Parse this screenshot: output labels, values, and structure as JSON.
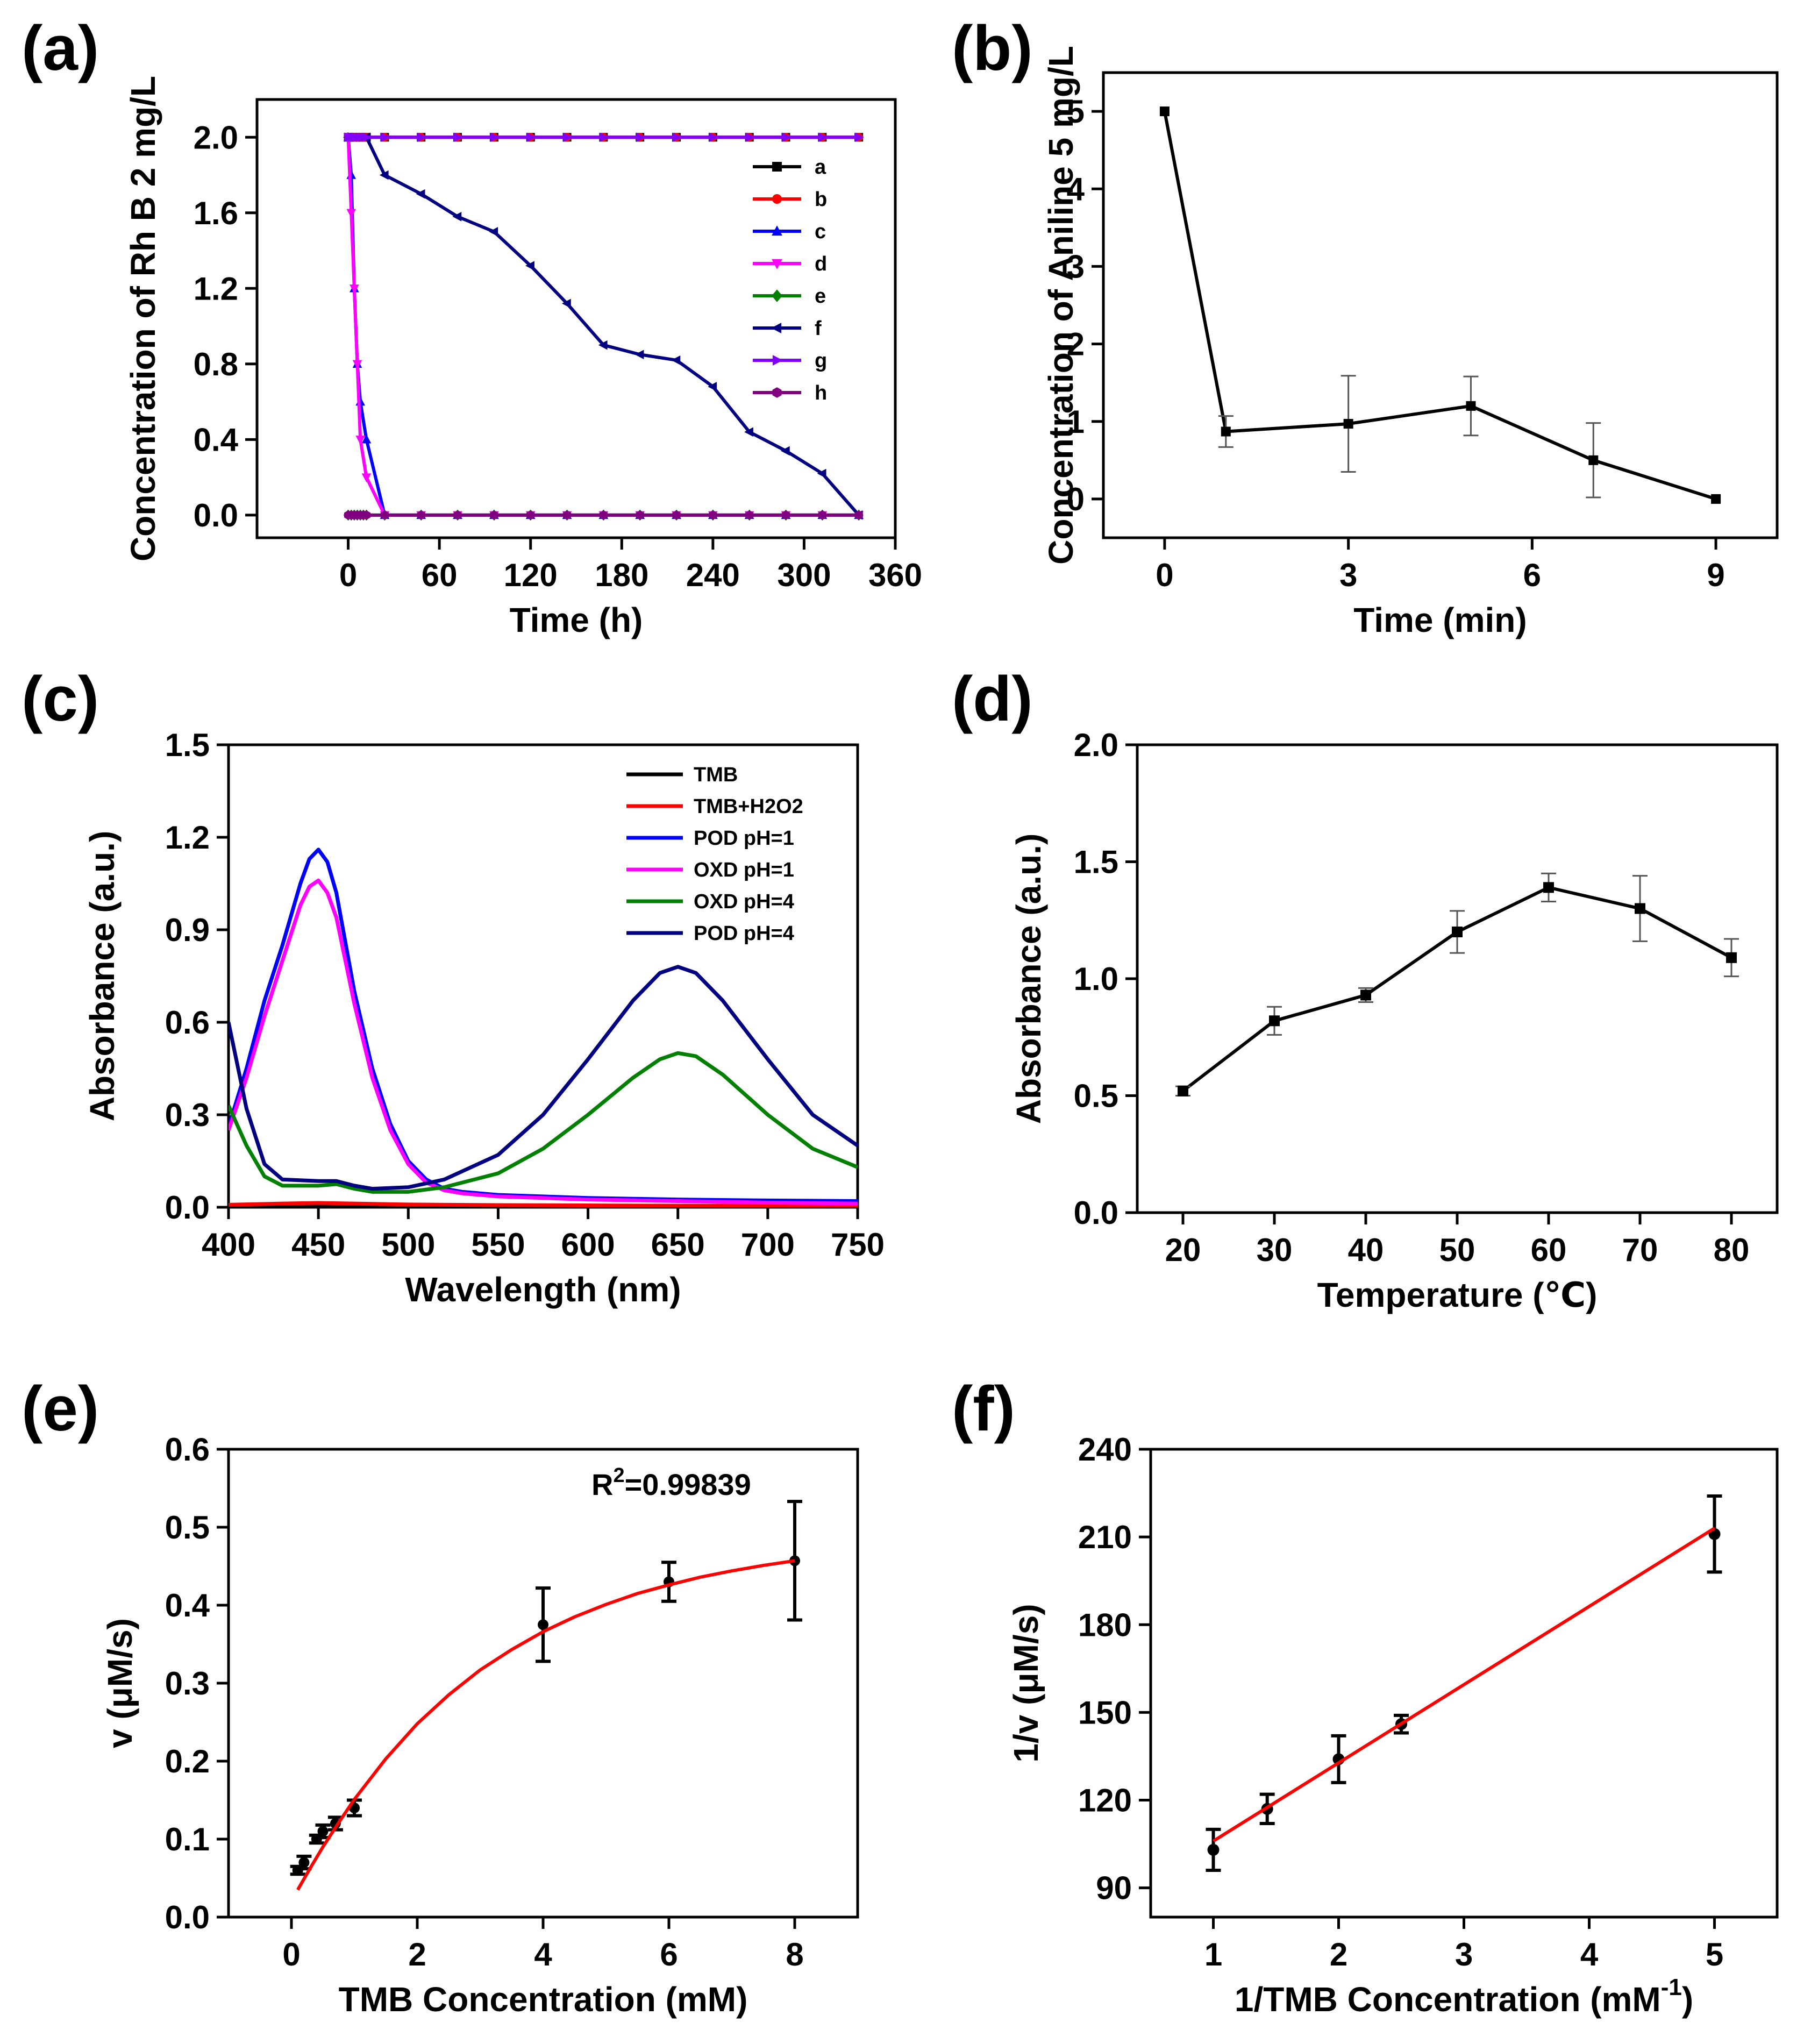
{
  "chart_data": [
    {
      "id": "a",
      "label": "(a)",
      "type": "line",
      "xlabel": "Time (h)",
      "ylabel": "Concentration of Rh B 2 mg/L",
      "xlim": [
        -60,
        360
      ],
      "ylim": [
        -0.12,
        2.2
      ],
      "xticks": [
        0,
        60,
        120,
        180,
        240,
        300,
        360
      ],
      "yticks": [
        0.0,
        0.4,
        0.8,
        1.2,
        1.6,
        2.0
      ],
      "xticklabels": [
        "0",
        "60",
        "120",
        "180",
        "240",
        "300",
        "360"
      ],
      "yticklabels": [
        "0.0",
        "0.4",
        "0.8",
        "1.2",
        "1.6",
        "2.0"
      ],
      "legend_position": "right",
      "series": [
        {
          "name": "a",
          "color": "#000000",
          "marker": "square",
          "x": [
            0,
            2,
            4,
            6,
            8,
            10,
            12,
            24,
            48,
            72,
            96,
            120,
            144,
            168,
            192,
            216,
            240,
            264,
            288,
            312,
            336
          ],
          "y": [
            2,
            2,
            2,
            2,
            2,
            2,
            2,
            2,
            2,
            2,
            2,
            2,
            2,
            2,
            2,
            2,
            2,
            2,
            2,
            2,
            2
          ]
        },
        {
          "name": "b",
          "color": "#ff0000",
          "marker": "circle",
          "x": [
            0,
            2,
            4,
            6,
            8,
            10,
            12,
            24,
            48,
            72,
            96,
            120,
            144,
            168,
            192,
            216,
            240,
            264,
            288,
            312,
            336
          ],
          "y": [
            2,
            2,
            2,
            2,
            2,
            2,
            2,
            2,
            2,
            2,
            2,
            2,
            2,
            2,
            2,
            2,
            2,
            2,
            2,
            2,
            2
          ]
        },
        {
          "name": "c",
          "color": "#0000ff",
          "marker": "triangle-up",
          "x": [
            0,
            2,
            4,
            6,
            8,
            12,
            24,
            48,
            72,
            96,
            120,
            144,
            168,
            192,
            216,
            240,
            264,
            288,
            312,
            336
          ],
          "y": [
            2.0,
            1.8,
            1.2,
            0.8,
            0.6,
            0.4,
            0.0,
            0,
            0,
            0,
            0,
            0,
            0,
            0,
            0,
            0,
            0,
            0,
            0,
            0
          ]
        },
        {
          "name": "d",
          "color": "#ff00ff",
          "marker": "triangle-down",
          "x": [
            0,
            2,
            4,
            6,
            8,
            12,
            24,
            48,
            72,
            96,
            120,
            144,
            168,
            192,
            216,
            240,
            264,
            288,
            312,
            336
          ],
          "y": [
            2.0,
            1.6,
            1.2,
            0.8,
            0.4,
            0.2,
            0.0,
            0,
            0,
            0,
            0,
            0,
            0,
            0,
            0,
            0,
            0,
            0,
            0,
            0
          ]
        },
        {
          "name": "e",
          "color": "#008000",
          "marker": "diamond",
          "x": [
            0,
            2,
            4,
            6,
            8,
            10,
            12,
            24,
            48,
            72,
            96,
            120,
            144,
            168,
            192,
            216,
            240,
            264,
            288,
            312,
            336
          ],
          "y": [
            0,
            0,
            0,
            0,
            0,
            0,
            0,
            0,
            0,
            0,
            0,
            0,
            0,
            0,
            0,
            0,
            0,
            0,
            0,
            0,
            0
          ]
        },
        {
          "name": "f",
          "color": "#000080",
          "marker": "triangle-left",
          "x": [
            0,
            12,
            24,
            48,
            72,
            96,
            120,
            144,
            168,
            192,
            216,
            240,
            264,
            288,
            312,
            336
          ],
          "y": [
            2.0,
            2.0,
            1.8,
            1.7,
            1.58,
            1.5,
            1.32,
            1.12,
            0.9,
            0.85,
            0.82,
            0.68,
            0.44,
            0.34,
            0.22,
            0.0
          ]
        },
        {
          "name": "g",
          "color": "#8000ff",
          "marker": "triangle-right",
          "x": [
            0,
            2,
            4,
            6,
            8,
            10,
            12,
            24,
            48,
            72,
            96,
            120,
            144,
            168,
            192,
            216,
            240,
            264,
            288,
            312,
            336
          ],
          "y": [
            2,
            2,
            2,
            2,
            2,
            2,
            2,
            2,
            2,
            2,
            2,
            2,
            2,
            2,
            2,
            2,
            2,
            2,
            2,
            2,
            2
          ]
        },
        {
          "name": "h",
          "color": "#800080",
          "marker": "hexagon",
          "x": [
            0,
            2,
            4,
            6,
            8,
            10,
            12,
            24,
            48,
            72,
            96,
            120,
            144,
            168,
            192,
            216,
            240,
            264,
            288,
            312,
            336
          ],
          "y": [
            0,
            0,
            0,
            0,
            0,
            0,
            0,
            0,
            0,
            0,
            0,
            0,
            0,
            0,
            0,
            0,
            0,
            0,
            0,
            0,
            0
          ]
        }
      ]
    },
    {
      "id": "b",
      "label": "(b)",
      "type": "line",
      "xlabel": "Time (min)",
      "ylabel": "Concentration of Aniline 5 mg/L",
      "xlim": [
        -1,
        10
      ],
      "ylim": [
        -0.5,
        5.5
      ],
      "xticks": [
        0,
        3,
        6,
        9
      ],
      "yticks": [
        0,
        1,
        2,
        3,
        4,
        5
      ],
      "xticklabels": [
        "0",
        "3",
        "6",
        "9"
      ],
      "yticklabels": [
        "0",
        "1",
        "2",
        "3",
        "4",
        "5"
      ],
      "series": [
        {
          "name": "Aniline",
          "color": "#000000",
          "marker": "square",
          "x": [
            0,
            1,
            3,
            5,
            7,
            9
          ],
          "y": [
            5.0,
            0.87,
            0.97,
            1.2,
            0.5,
            0.0
          ],
          "yerr": [
            0,
            0.2,
            0.62,
            0.38,
            0.48,
            0
          ]
        }
      ]
    },
    {
      "id": "c",
      "label": "(c)",
      "type": "line",
      "xlabel": "Wavelength (nm)",
      "ylabel": "Absorbance (a.u.)",
      "xlim": [
        400,
        750
      ],
      "ylim": [
        0.0,
        1.5
      ],
      "xticks": [
        400,
        450,
        500,
        550,
        600,
        650,
        700,
        750
      ],
      "yticks": [
        0.0,
        0.3,
        0.6,
        0.9,
        1.2,
        1.5
      ],
      "xticklabels": [
        "400",
        "450",
        "500",
        "550",
        "600",
        "650",
        "700",
        "750"
      ],
      "yticklabels": [
        "0.0",
        "0.3",
        "0.6",
        "0.9",
        "1.2",
        "1.5"
      ],
      "legend_position": "top-right",
      "series": [
        {
          "name": "TMB",
          "color": "#000000",
          "x": [
            400,
            450,
            500,
            550,
            600,
            650,
            700,
            750
          ],
          "y": [
            0.004,
            0.005,
            0.004,
            0.003,
            0.003,
            0.002,
            0.002,
            0.002
          ]
        },
        {
          "name": "TMB+H2O2",
          "color": "#ff0000",
          "x": [
            400,
            430,
            450,
            470,
            500,
            550,
            600,
            650,
            700,
            750
          ],
          "y": [
            0.008,
            0.012,
            0.014,
            0.012,
            0.009,
            0.007,
            0.006,
            0.005,
            0.005,
            0.004
          ]
        },
        {
          "name": "POD pH=1",
          "color": "#0000ff",
          "x": [
            400,
            410,
            420,
            430,
            440,
            445,
            450,
            455,
            460,
            470,
            480,
            490,
            500,
            510,
            520,
            530,
            540,
            550,
            575,
            600,
            650,
            700,
            750
          ],
          "y": [
            0.26,
            0.45,
            0.67,
            0.85,
            1.05,
            1.13,
            1.16,
            1.12,
            1.02,
            0.7,
            0.45,
            0.27,
            0.15,
            0.09,
            0.06,
            0.05,
            0.045,
            0.04,
            0.035,
            0.03,
            0.025,
            0.022,
            0.02
          ]
        },
        {
          "name": "OXD pH=1",
          "color": "#ff00ff",
          "x": [
            400,
            410,
            420,
            430,
            440,
            445,
            450,
            455,
            460,
            470,
            480,
            490,
            500,
            510,
            520,
            530,
            540,
            550,
            575,
            600,
            650,
            700,
            750
          ],
          "y": [
            0.25,
            0.42,
            0.62,
            0.8,
            0.98,
            1.04,
            1.06,
            1.02,
            0.94,
            0.66,
            0.42,
            0.25,
            0.14,
            0.08,
            0.055,
            0.045,
            0.04,
            0.035,
            0.03,
            0.025,
            0.02,
            0.015,
            0.012
          ]
        },
        {
          "name": "OXD pH=4",
          "color": "#008000",
          "x": [
            400,
            410,
            420,
            430,
            450,
            460,
            470,
            480,
            500,
            520,
            550,
            575,
            600,
            625,
            640,
            650,
            660,
            675,
            700,
            725,
            750
          ],
          "y": [
            0.33,
            0.2,
            0.1,
            0.07,
            0.07,
            0.075,
            0.06,
            0.05,
            0.05,
            0.065,
            0.11,
            0.19,
            0.3,
            0.42,
            0.48,
            0.5,
            0.49,
            0.43,
            0.3,
            0.19,
            0.13
          ]
        },
        {
          "name": "POD pH=4",
          "color": "#000080",
          "x": [
            400,
            410,
            420,
            430,
            450,
            460,
            470,
            480,
            500,
            520,
            550,
            575,
            600,
            625,
            640,
            650,
            660,
            675,
            700,
            725,
            750
          ],
          "y": [
            0.6,
            0.32,
            0.14,
            0.09,
            0.085,
            0.085,
            0.07,
            0.06,
            0.065,
            0.09,
            0.17,
            0.3,
            0.48,
            0.67,
            0.76,
            0.78,
            0.76,
            0.67,
            0.48,
            0.3,
            0.2
          ]
        }
      ]
    },
    {
      "id": "d",
      "label": "(d)",
      "type": "line",
      "xlabel": "Temperature (℃)",
      "ylabel": "Absorbance (a.u.)",
      "xlim": [
        15,
        85
      ],
      "ylim": [
        0.0,
        2.0
      ],
      "xticks": [
        20,
        30,
        40,
        50,
        60,
        70,
        80
      ],
      "yticks": [
        0.0,
        0.5,
        1.0,
        1.5,
        2.0
      ],
      "xticklabels": [
        "20",
        "30",
        "40",
        "50",
        "60",
        "70",
        "80"
      ],
      "yticklabels": [
        "0.0",
        "0.5",
        "1.0",
        "1.5",
        "2.0"
      ],
      "series": [
        {
          "name": "Absorbance",
          "color": "#000000",
          "marker": "square",
          "x": [
            20,
            30,
            40,
            50,
            60,
            70,
            80
          ],
          "y": [
            0.52,
            0.82,
            0.93,
            1.2,
            1.39,
            1.3,
            1.09
          ],
          "yerr": [
            0.02,
            0.06,
            0.03,
            0.09,
            0.06,
            0.14,
            0.08
          ]
        }
      ]
    },
    {
      "id": "e",
      "label": "(e)",
      "type": "scatter",
      "xlabel": "TMB Concentration (mM)",
      "ylabel": "v (μM/s)",
      "xlim": [
        -1,
        9
      ],
      "ylim": [
        0.0,
        0.6
      ],
      "xticks": [
        0,
        2,
        4,
        6,
        8
      ],
      "yticks": [
        0.0,
        0.1,
        0.2,
        0.3,
        0.4,
        0.5,
        0.6
      ],
      "xticklabels": [
        "0",
        "2",
        "4",
        "6",
        "8"
      ],
      "yticklabels": [
        "0.0",
        "0.1",
        "0.2",
        "0.3",
        "0.4",
        "0.5",
        "0.6"
      ],
      "annotation": {
        "prefix": "R",
        "sup": "2",
        "suffix": "=0.99839"
      },
      "series": [
        {
          "name": "data",
          "color": "#000000",
          "marker": "circle",
          "x": [
            0.1,
            0.2,
            0.4,
            0.5,
            0.7,
            1.0,
            4,
            6,
            8
          ],
          "y": [
            0.06,
            0.07,
            0.1,
            0.11,
            0.12,
            0.14,
            0.375,
            0.43,
            0.457
          ],
          "yerr": [
            0.005,
            0.008,
            0.005,
            0.008,
            0.008,
            0.01,
            0.047,
            0.025,
            0.076
          ]
        },
        {
          "name": "fit",
          "color": "#ff0000",
          "x": [
            0.1,
            0.3,
            0.5,
            0.75,
            1.0,
            1.5,
            2.0,
            2.5,
            3.0,
            3.5,
            4.0,
            4.5,
            5.0,
            5.5,
            6.0,
            6.5,
            7.0,
            7.5,
            8.0
          ],
          "y": [
            0.035,
            0.063,
            0.09,
            0.121,
            0.151,
            0.203,
            0.248,
            0.285,
            0.317,
            0.343,
            0.366,
            0.385,
            0.401,
            0.415,
            0.426,
            0.436,
            0.444,
            0.451,
            0.457
          ]
        }
      ]
    },
    {
      "id": "f",
      "label": "(f)",
      "type": "scatter",
      "xlabel": "1/TMB Concentration (mM",
      "xlabel_sup": "-1",
      "xlabel_suffix": ")",
      "ylabel": "1/v (μM/s)",
      "xlim": [
        0.5,
        5.5
      ],
      "ylim": [
        80,
        240
      ],
      "xticks": [
        1,
        2,
        3,
        4,
        5
      ],
      "yticks": [
        90,
        120,
        150,
        180,
        210,
        240
      ],
      "xticklabels": [
        "1",
        "2",
        "3",
        "4",
        "5"
      ],
      "yticklabels": [
        "90",
        "120",
        "150",
        "180",
        "210",
        "240"
      ],
      "series": [
        {
          "name": "data",
          "color": "#000000",
          "marker": "circle",
          "x": [
            1,
            1.43,
            2,
            2.5,
            5
          ],
          "y": [
            103,
            117,
            134,
            146,
            211
          ],
          "yerr": [
            7,
            5,
            8,
            3,
            13
          ]
        },
        {
          "name": "fit",
          "color": "#ff0000",
          "x": [
            1,
            5
          ],
          "y": [
            106,
            213
          ]
        }
      ]
    }
  ]
}
